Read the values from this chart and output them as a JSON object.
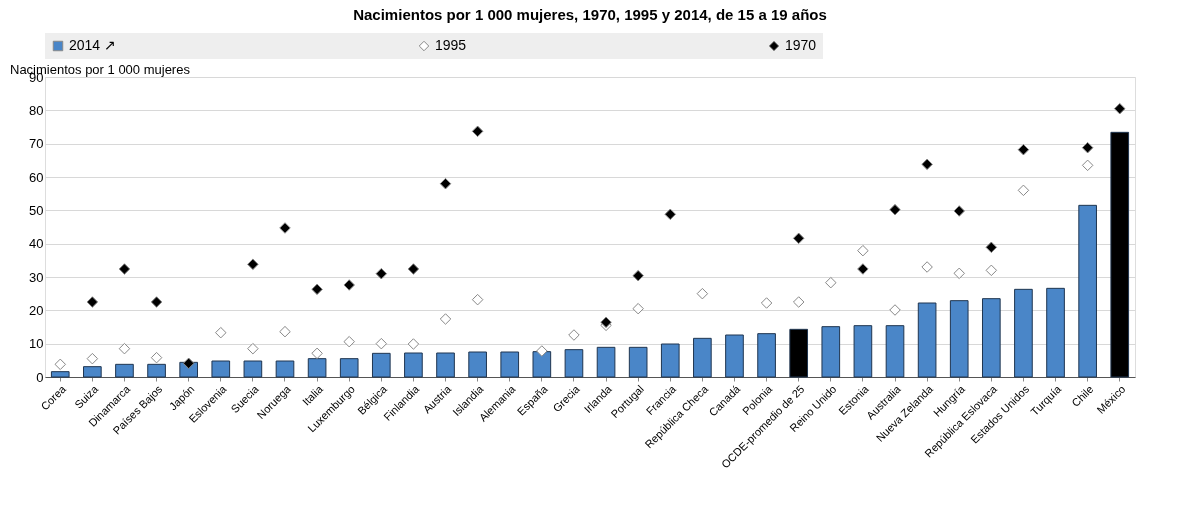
{
  "chart_data": {
    "type": "bar",
    "title": "Nacimientos por 1 000 mujeres, 1970, 1995 y 2014, de 15 a 19 años",
    "ylabel": "Nacimientos por 1 000 mujeres",
    "categories": [
      "Corea",
      "Suiza",
      "Dinamarca",
      "Países Bajos",
      "Japón",
      "Eslovenia",
      "Suecia",
      "Noruega",
      "Italia",
      "Luxemburgo",
      "Bélgica",
      "Finlandia",
      "Austria",
      "Islandia",
      "Alemania",
      "España",
      "Grecia",
      "Irlanda",
      "Portugal",
      "Francia",
      "República Checa",
      "Canadá",
      "Polonia",
      "OCDE-promedio de 25",
      "Reino Unido",
      "Estonia",
      "Australia",
      "Nueva Zelanda",
      "Hungría",
      "República Eslovaca",
      "Estados Unidos",
      "Turquía",
      "Chile",
      "México"
    ],
    "series": [
      {
        "name": "2014 ↗",
        "color": "#4a86c8",
        "colors": [
          "#4a86c8",
          "#4a86c8",
          "#4a86c8",
          "#4a86c8",
          "#4a86c8",
          "#4a86c8",
          "#4a86c8",
          "#4a86c8",
          "#4a86c8",
          "#4a86c8",
          "#4a86c8",
          "#4a86c8",
          "#4a86c8",
          "#4a86c8",
          "#4a86c8",
          "#4a86c8",
          "#4a86c8",
          "#4a86c8",
          "#4a86c8",
          "#4a86c8",
          "#4a86c8",
          "#4a86c8",
          "#4a86c8",
          "#000000",
          "#4a86c8",
          "#4a86c8",
          "#4a86c8",
          "#4a86c8",
          "#4a86c8",
          "#4a86c8",
          "#4a86c8",
          "#4a86c8",
          "#4a86c8",
          "#000000"
        ],
        "values": [
          1.6,
          3.1,
          3.8,
          3.8,
          4.4,
          4.8,
          4.8,
          4.8,
          5.5,
          5.5,
          7.1,
          7.2,
          7.2,
          7.5,
          7.5,
          7.6,
          8.2,
          8.9,
          8.9,
          9.9,
          11.6,
          12.6,
          13.0,
          14.3,
          15.1,
          15.4,
          15.4,
          22.2,
          22.9,
          23.5,
          26.3,
          26.6,
          51.5,
          73.4
        ]
      },
      {
        "name": "1995",
        "type": "scatter",
        "color": "#ffffff",
        "values": [
          3.8,
          5.5,
          8.5,
          5.8,
          null,
          13.3,
          8.5,
          13.6,
          7.1,
          10.6,
          10.0,
          9.9,
          17.4,
          23.2,
          null,
          7.8,
          12.6,
          15.5,
          20.5,
          null,
          25.0,
          null,
          22.2,
          22.5,
          28.3,
          37.9,
          20.1,
          33.0,
          31.1,
          32.0,
          56.0,
          null,
          63.5,
          null
        ]
      },
      {
        "name": "1970",
        "type": "scatter",
        "color": "#000000",
        "values": [
          null,
          22.5,
          32.4,
          22.5,
          4.1,
          null,
          33.8,
          44.7,
          26.3,
          27.6,
          31.0,
          32.4,
          58.0,
          73.7,
          null,
          null,
          null,
          16.4,
          30.4,
          48.8,
          null,
          null,
          null,
          41.6,
          null,
          32.4,
          50.2,
          63.8,
          49.8,
          38.9,
          68.2,
          null,
          68.8,
          80.5
        ]
      }
    ],
    "ylim": [
      0,
      90
    ],
    "yticks": [
      0,
      10,
      20,
      30,
      40,
      50,
      60,
      70,
      80,
      90
    ],
    "grid": "y",
    "legend": "top",
    "marker": "diamond"
  }
}
